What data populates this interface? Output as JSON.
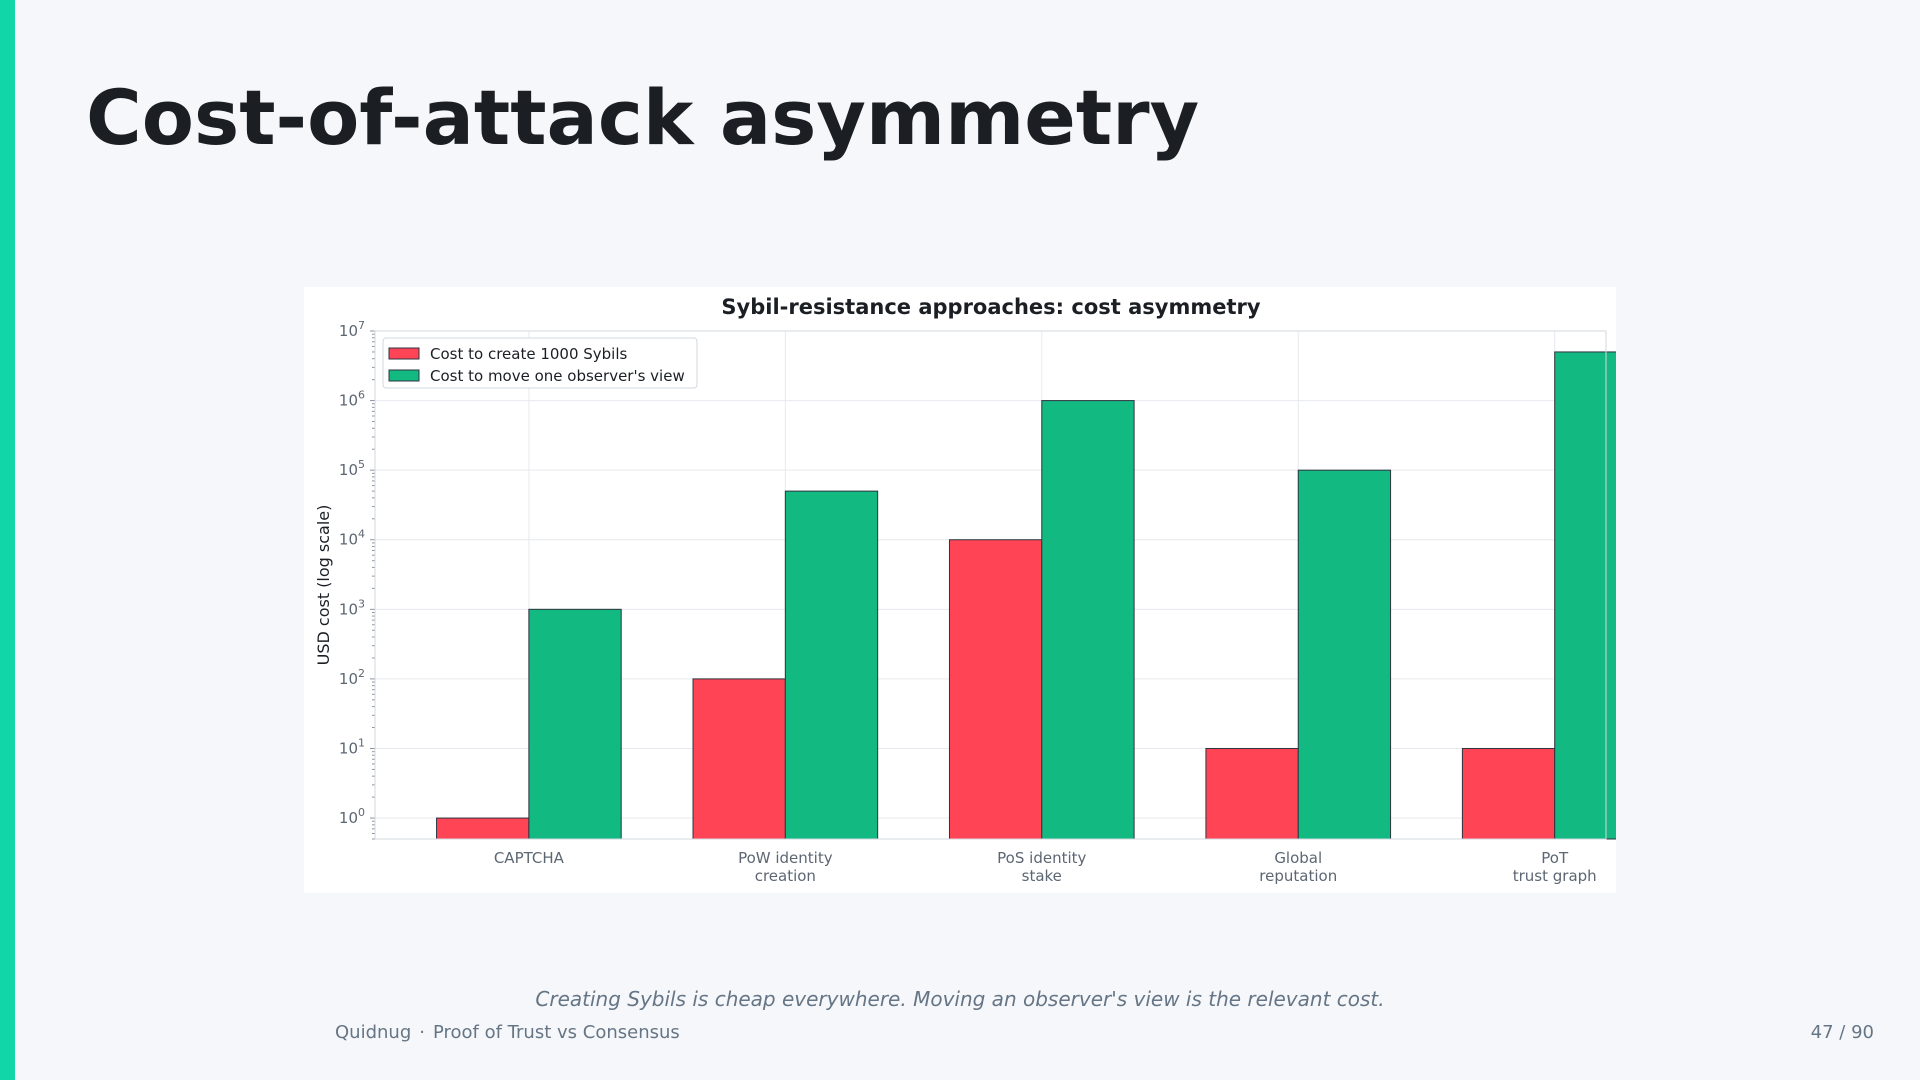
{
  "slide": {
    "title": "Cost-of-attack asymmetry",
    "caption": "Creating Sybils is cheap everywhere. Moving an observer's view is the relevant cost.",
    "footer": {
      "brand": "Quidnug",
      "separator": "·",
      "deck": "Proof of Trust vs Consensus",
      "page": "47 / 90"
    },
    "accent_color": "#10d6a8"
  },
  "chart_data": {
    "type": "bar",
    "title": "Sybil-resistance approaches: cost asymmetry",
    "xlabel": "",
    "ylabel": "USD cost (log scale)",
    "yscale": "log",
    "ylim": [
      0.5,
      10000000
    ],
    "y_ticks": [
      {
        "base": "10",
        "exp": "0",
        "value": 1
      },
      {
        "base": "10",
        "exp": "1",
        "value": 10
      },
      {
        "base": "10",
        "exp": "2",
        "value": 100
      },
      {
        "base": "10",
        "exp": "3",
        "value": 1000
      },
      {
        "base": "10",
        "exp": "4",
        "value": 10000
      },
      {
        "base": "10",
        "exp": "5",
        "value": 100000
      },
      {
        "base": "10",
        "exp": "6",
        "value": 1000000
      },
      {
        "base": "10",
        "exp": "7",
        "value": 10000000
      }
    ],
    "categories": [
      [
        "CAPTCHA"
      ],
      [
        "PoW identity",
        "creation"
      ],
      [
        "PoS identity",
        "stake"
      ],
      [
        "Global",
        "reputation"
      ],
      [
        "PoT",
        "trust graph"
      ]
    ],
    "series": [
      {
        "name": "Cost to create 1000 Sybils",
        "color": "#ff4455",
        "values": [
          1,
          100,
          10000,
          10,
          10
        ]
      },
      {
        "name": "Cost to move one observer's view",
        "color": "#12b981",
        "values": [
          1000,
          50000,
          1000000,
          100000,
          5000000
        ]
      }
    ],
    "grid": true,
    "legend": "top-left"
  }
}
